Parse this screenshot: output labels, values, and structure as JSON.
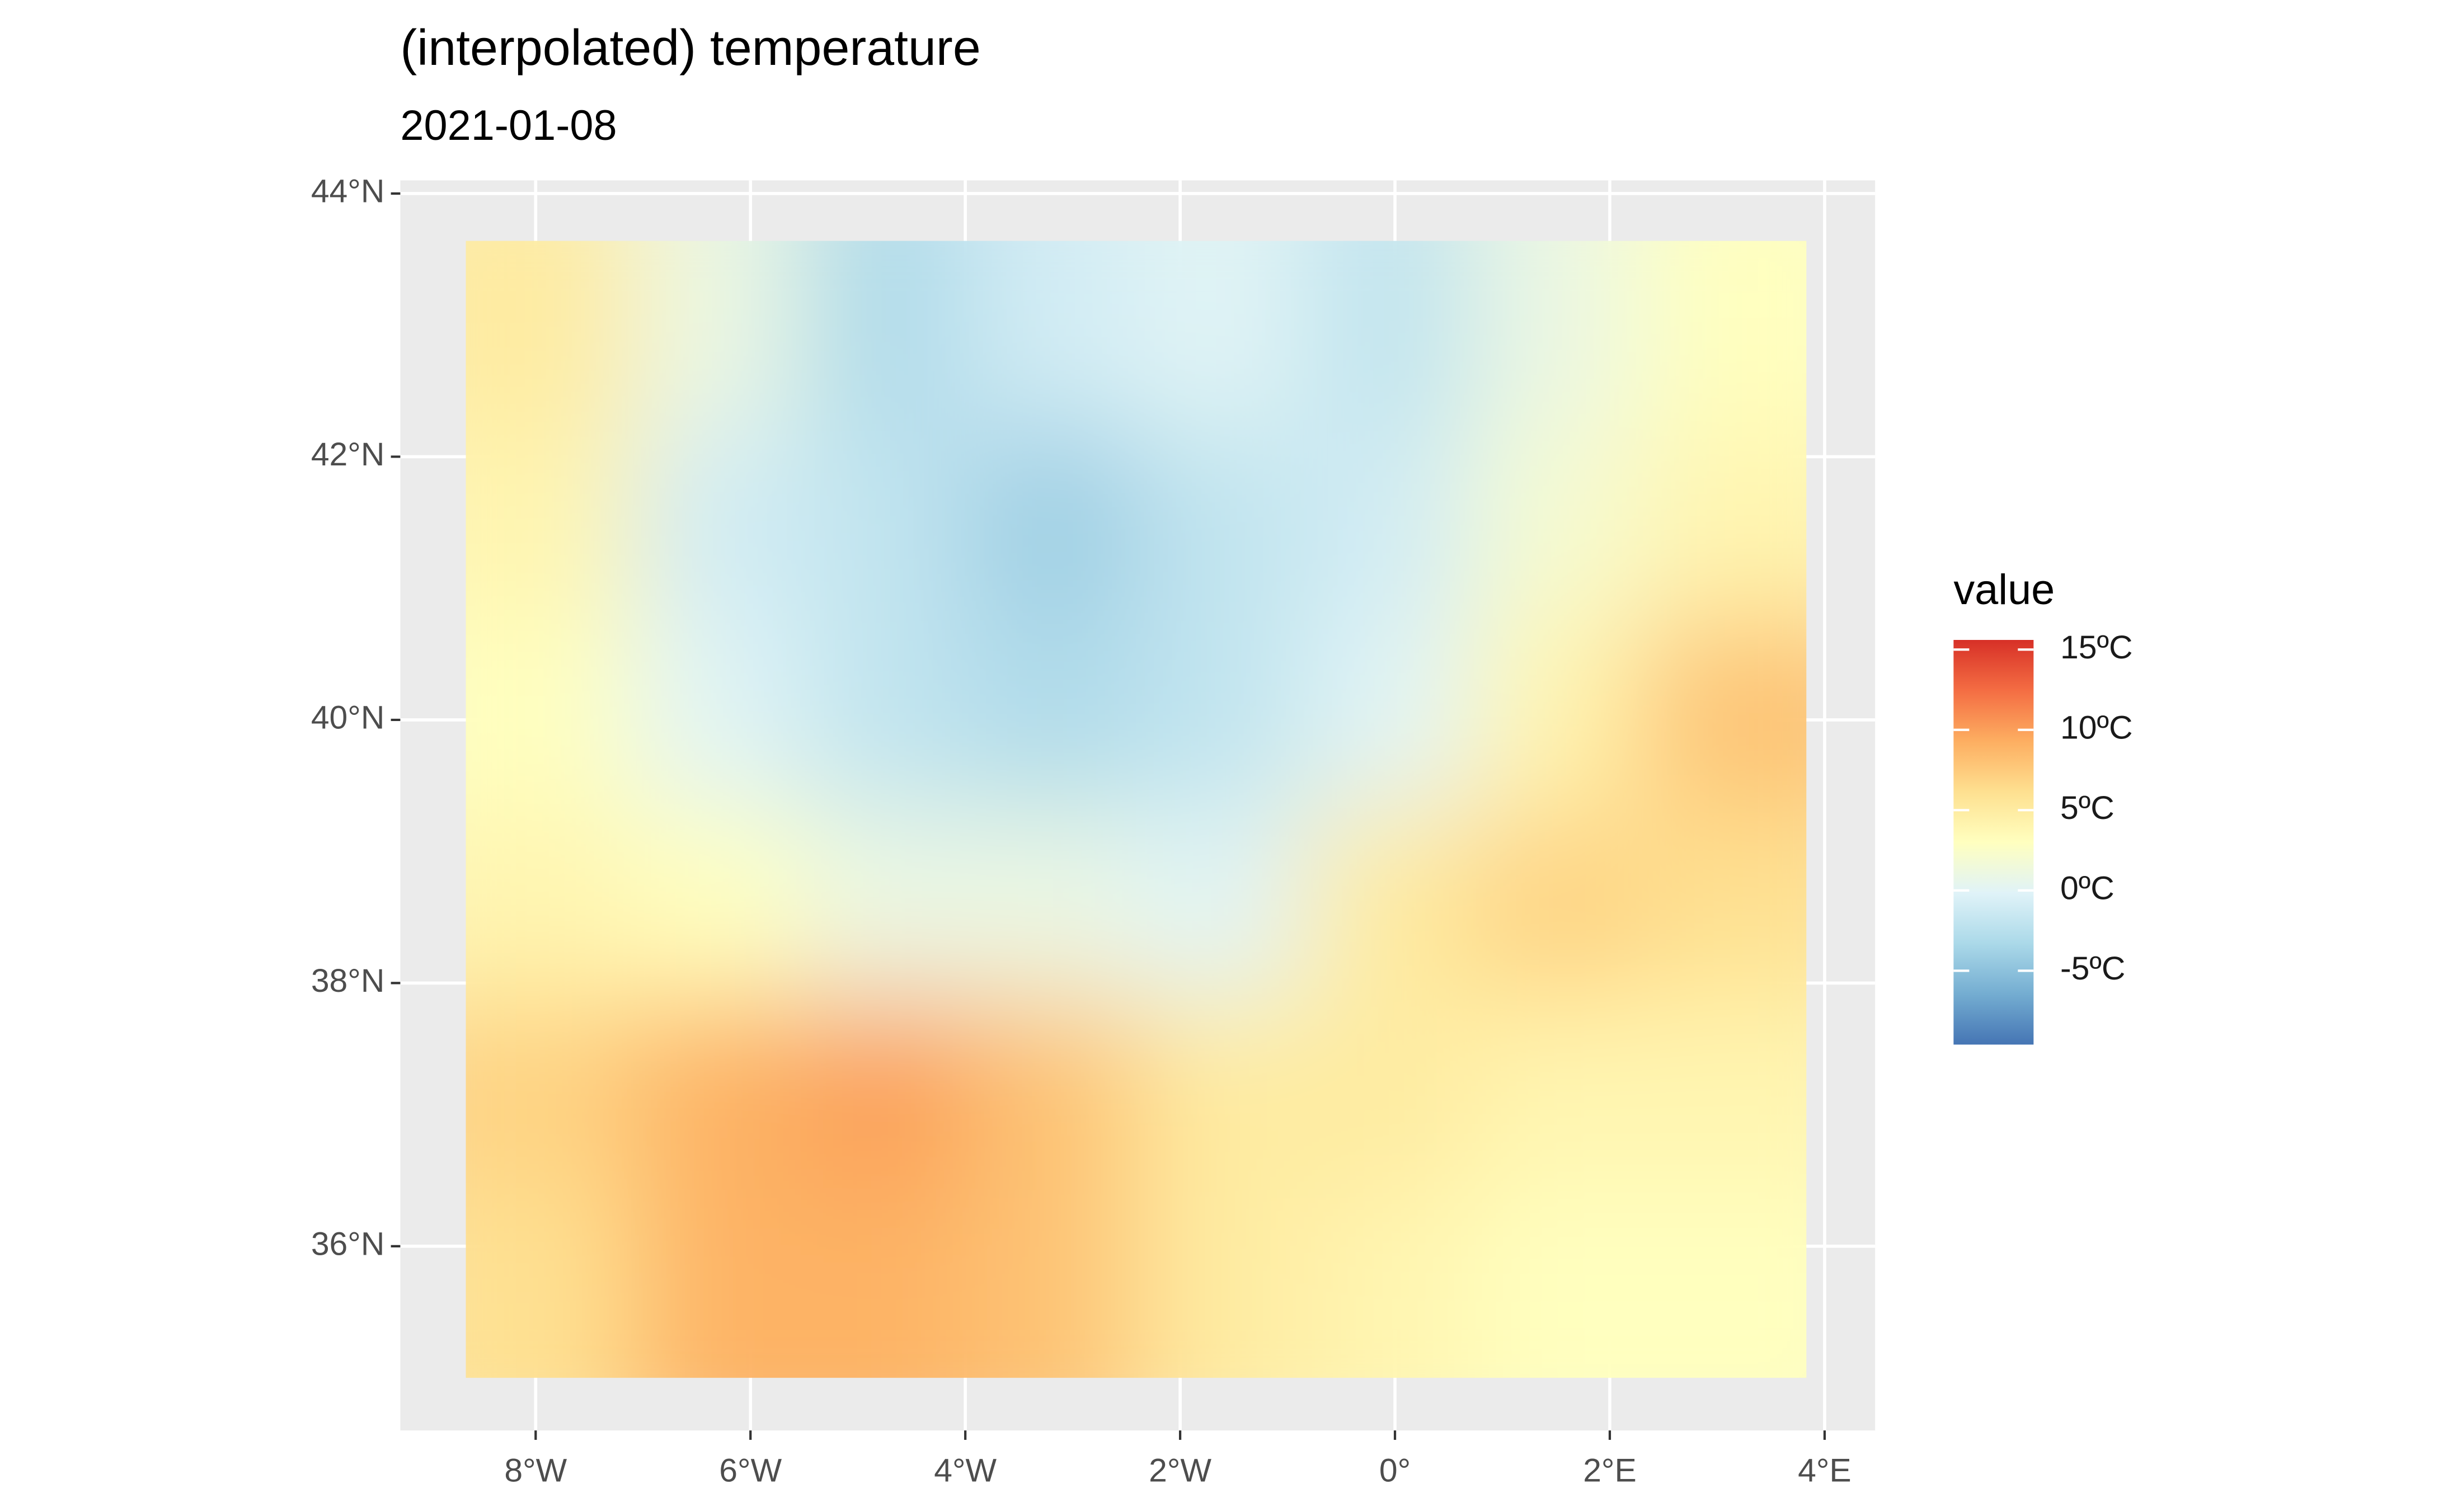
{
  "chart_data": {
    "type": "heatmap",
    "title": "(interpolated) temperature",
    "subtitle": "2021-01-08",
    "x": [
      -7.87,
      -6.31,
      -4.75,
      -3.19,
      -1.63,
      -0.07,
      1.49,
      3.05
    ],
    "y": [
      42.92,
      41.48,
      40.04,
      38.6,
      37.16,
      35.72
    ],
    "z": [
      [
        5,
        1,
        -3,
        -1,
        0,
        -2,
        1,
        3
      ],
      [
        4,
        -1,
        -2,
        -4,
        -2,
        -1,
        2,
        4
      ],
      [
        3,
        0,
        -2,
        -3,
        -2,
        0,
        4,
        8
      ],
      [
        4,
        3,
        1,
        1,
        0,
        5,
        7,
        6
      ],
      [
        7,
        9,
        10,
        8,
        5,
        5,
        4,
        4
      ],
      [
        6,
        9,
        9,
        8,
        5,
        4,
        3,
        3
      ]
    ],
    "xlim": [
      -9.26,
      4.47
    ],
    "ylim": [
      34.6,
      44.1
    ],
    "xticks": [
      {
        "value": -8,
        "label": "8°W"
      },
      {
        "value": -6,
        "label": "6°W"
      },
      {
        "value": -4,
        "label": "4°W"
      },
      {
        "value": -2,
        "label": "2°W"
      },
      {
        "value": 0,
        "label": "0°"
      },
      {
        "value": 2,
        "label": "2°E"
      },
      {
        "value": 4,
        "label": "4°E"
      }
    ],
    "yticks": [
      {
        "value": 36,
        "label": "36°N"
      },
      {
        "value": 38,
        "label": "38°N"
      },
      {
        "value": 40,
        "label": "40°N"
      },
      {
        "value": 42,
        "label": "42°N"
      },
      {
        "value": 44,
        "label": "44°N"
      }
    ],
    "grid": true,
    "legend": {
      "title": "value",
      "position": "right",
      "clim": [
        -9.6,
        15.6
      ],
      "colors": [
        "#4575b4",
        "#74add1",
        "#abd9e9",
        "#e0f3f8",
        "#ffffbf",
        "#fee090",
        "#fdae61",
        "#f46d43",
        "#d73027"
      ],
      "ticks": [
        {
          "value": -5,
          "label": "-5ºC"
        },
        {
          "value": 0,
          "label": "0ºC"
        },
        {
          "value": 5,
          "label": "5ºC"
        },
        {
          "value": 10,
          "label": "10ºC"
        },
        {
          "value": 15,
          "label": "15ºC"
        }
      ]
    }
  }
}
